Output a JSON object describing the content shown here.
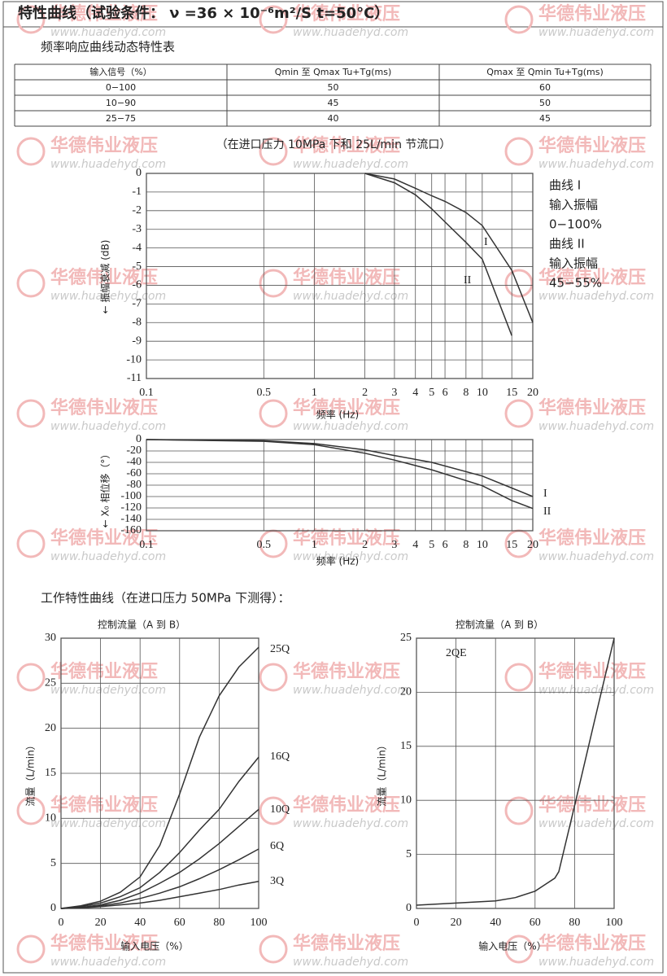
{
  "header": {
    "title": "特性曲线（试验条件： ν =36 × 10⁻⁶m²/S  t=50°C）"
  },
  "watermark": {
    "name": "华德伟业液压",
    "url": "www.huadehyd.com"
  },
  "table": {
    "title": "频率响应曲线动态特性表",
    "header": [
      "输入信号（%）",
      "Qmin 至 Qmax  Tu+Tg(ms)",
      "Qmax 至 Qmin  Tu+Tg(ms)"
    ],
    "rows": [
      [
        "0−100",
        "50",
        "60"
      ],
      [
        "10−90",
        "45",
        "50"
      ],
      [
        "25−75",
        "40",
        "45"
      ]
    ]
  },
  "section_title": "工作特性曲线（在进口压力 50MPa 下测得）：",
  "chart_data": [
    {
      "type": "line",
      "title": "（在进口压力 10MPa 下和 25L/min 节流口）",
      "xlabel": "频率 (Hz)",
      "ylabel": "← 振幅衰减 (dB)",
      "log_x": true,
      "grid": true,
      "x": [
        2,
        3,
        4,
        5,
        6,
        8,
        10,
        15,
        20
      ],
      "xlim": [
        0.1,
        20
      ],
      "xticks": [
        0.1,
        0.5,
        1,
        2,
        3,
        4,
        5,
        6,
        8,
        10,
        15,
        20
      ],
      "ylim": [
        -11,
        0
      ],
      "yticks": [
        0,
        -1,
        -2,
        -3,
        -4,
        -5,
        -6,
        -7,
        -8,
        -9,
        -10,
        -11
      ],
      "series": [
        {
          "name": "I",
          "color": "#333333",
          "values": [
            0,
            -0.3,
            -0.8,
            -1.2,
            -1.5,
            -2.1,
            -2.8,
            -5.2,
            -8
          ]
        },
        {
          "name": "II",
          "color": "#333333",
          "values": [
            0,
            -0.5,
            -1.15,
            -1.9,
            -2.6,
            -3.7,
            -4.6,
            -8.7,
            null
          ]
        }
      ],
      "notes": [
        "曲线 I",
        "输入振幅",
        "0−100%",
        "曲线 II",
        "输入振幅",
        "45−55%"
      ]
    },
    {
      "type": "line",
      "xlabel": "频率 (Hz)",
      "ylabel": "← X₀ 相位移（°）",
      "log_x": true,
      "grid": true,
      "x": [
        0.1,
        0.5,
        1,
        2,
        3,
        5,
        10,
        15,
        20
      ],
      "xlim": [
        0.1,
        20
      ],
      "xticks": [
        0.1,
        0.5,
        1,
        2,
        3,
        4,
        5,
        6,
        8,
        10,
        15,
        20
      ],
      "ylim": [
        -160,
        0
      ],
      "yticks": [
        0,
        -20,
        -40,
        -60,
        -80,
        -100,
        -120,
        -140,
        -160
      ],
      "series": [
        {
          "name": "I",
          "color": "#333333",
          "values": [
            0,
            -2,
            -7,
            -18,
            -28,
            -40,
            -64,
            -85,
            -100
          ]
        },
        {
          "name": "II",
          "color": "#333333",
          "values": [
            0,
            -3,
            -9,
            -24,
            -36,
            -53,
            -81,
            -107,
            -121
          ]
        }
      ]
    },
    {
      "type": "line",
      "title": "控制流量（A 到 B）",
      "xlabel": "输入电压（%）",
      "ylabel": "流量（L/min）",
      "log_x": false,
      "grid": true,
      "x": [
        0,
        10,
        20,
        30,
        40,
        50,
        60,
        70,
        80,
        90,
        100
      ],
      "xlim": [
        0,
        100
      ],
      "xticks": [
        0,
        20,
        40,
        60,
        80,
        100
      ],
      "ylim": [
        0,
        30
      ],
      "yticks": [
        0,
        5,
        10,
        15,
        20,
        25,
        30
      ],
      "series": [
        {
          "name": "25Q",
          "color": "#333333",
          "values": [
            0,
            0.3,
            0.8,
            1.8,
            3.5,
            7,
            12.7,
            19,
            23.6,
            26.8,
            29
          ]
        },
        {
          "name": "16Q",
          "color": "#333333",
          "values": [
            0,
            0.2,
            0.6,
            1.3,
            2.3,
            4,
            6.2,
            8.7,
            11,
            14.1,
            16.8
          ]
        },
        {
          "name": "10Q",
          "color": "#333333",
          "values": [
            0,
            0.1,
            0.4,
            0.9,
            1.7,
            2.8,
            4,
            5.5,
            7.2,
            9.1,
            11
          ]
        },
        {
          "name": "6Q",
          "color": "#333333",
          "values": [
            0,
            0.1,
            0.3,
            0.6,
            1.1,
            1.7,
            2.4,
            3.3,
            4.3,
            5.4,
            6.6
          ]
        },
        {
          "name": "3Q",
          "color": "#333333",
          "values": [
            0,
            0.05,
            0.2,
            0.4,
            0.6,
            0.9,
            1.3,
            1.7,
            2.1,
            2.6,
            3
          ]
        }
      ]
    },
    {
      "type": "line",
      "title": "控制流量（A 到 B）",
      "xlabel": "输入电压（%）",
      "ylabel": "流量（L/min）",
      "log_x": false,
      "grid": true,
      "x": [
        0,
        20,
        40,
        50,
        60,
        65,
        70,
        72,
        80,
        90,
        100
      ],
      "xlim": [
        0,
        100
      ],
      "xticks": [
        0,
        20,
        40,
        60,
        80,
        100
      ],
      "ylim": [
        0,
        25
      ],
      "yticks": [
        0,
        5,
        10,
        15,
        20,
        25
      ],
      "series": [
        {
          "name": "2QE",
          "color": "#333333",
          "values": [
            0.3,
            0.5,
            0.7,
            1.0,
            1.6,
            2.2,
            2.8,
            3.4,
            9.5,
            17.3,
            25
          ]
        }
      ]
    }
  ]
}
